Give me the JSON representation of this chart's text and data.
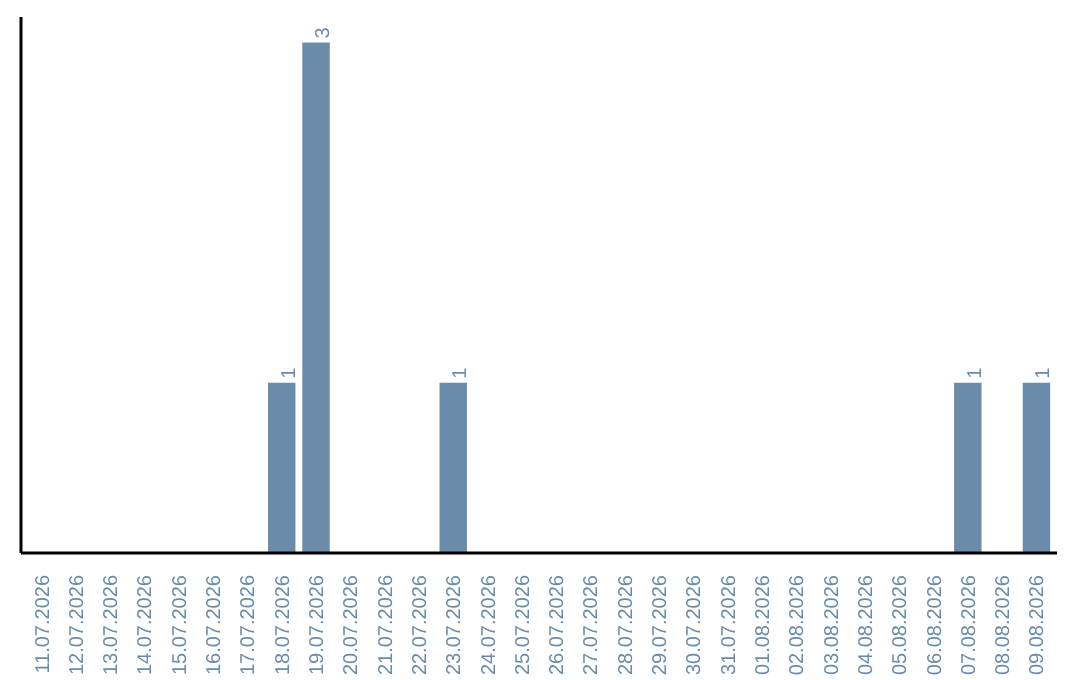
{
  "chart_data": {
    "type": "bar",
    "categories": [
      "11.07.2026",
      "12.07.2026",
      "13.07.2026",
      "14.07.2026",
      "15.07.2026",
      "16.07.2026",
      "17.07.2026",
      "18.07.2026",
      "19.07.2026",
      "20.07.2026",
      "21.07.2026",
      "22.07.2026",
      "23.07.2026",
      "24.07.2026",
      "25.07.2026",
      "26.07.2026",
      "27.07.2026",
      "28.07.2026",
      "29.07.2026",
      "30.07.2026",
      "31.07.2026",
      "01.08.2026",
      "02.08.2026",
      "03.08.2026",
      "04.08.2026",
      "05.08.2026",
      "06.08.2026",
      "07.08.2026",
      "08.08.2026",
      "09.08.2026"
    ],
    "values": [
      0,
      0,
      0,
      0,
      0,
      0,
      0,
      1,
      3,
      0,
      0,
      0,
      1,
      0,
      0,
      0,
      0,
      0,
      0,
      0,
      0,
      0,
      0,
      0,
      0,
      0,
      0,
      1,
      0,
      1
    ],
    "value_labels": [
      null,
      null,
      null,
      null,
      null,
      null,
      null,
      "1",
      "3",
      null,
      null,
      null,
      "1",
      null,
      null,
      null,
      null,
      null,
      null,
      null,
      null,
      null,
      null,
      null,
      null,
      null,
      null,
      "1",
      null,
      "1"
    ],
    "color": "#6a8caa",
    "tick_labels": "x",
    "grid": false
  }
}
